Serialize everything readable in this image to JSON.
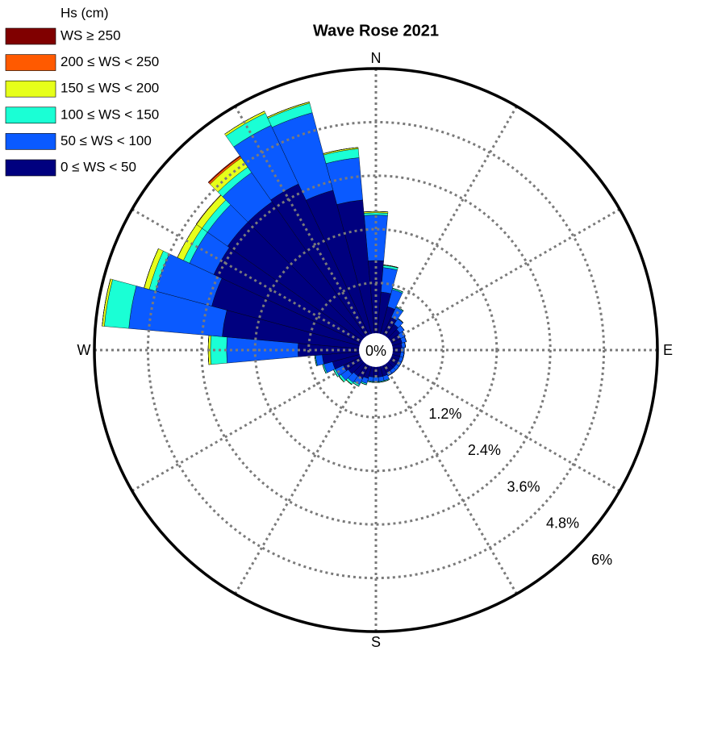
{
  "chart_data": {
    "type": "polar_stacked_bar",
    "title": "Wave Rose 2021",
    "legend_title": "Hs (cm)",
    "categories": [
      null,
      null,
      null,
      null,
      null,
      null,
      null,
      null,
      null,
      null,
      null,
      null,
      null,
      null,
      null,
      null,
      null,
      null,
      null,
      null,
      null,
      null,
      null,
      null,
      null,
      null,
      null,
      null,
      null,
      null,
      null,
      null,
      null,
      null,
      null,
      null
    ],
    "direction_labels": [
      "N",
      "E",
      "S",
      "W"
    ],
    "ylim": [
      0,
      6
    ],
    "yticks": [
      {
        "value": 0,
        "label": "0%"
      },
      {
        "value": 1.2,
        "label": "1.2%"
      },
      {
        "value": 2.4,
        "label": "2.4%"
      },
      {
        "value": 3.6,
        "label": "3.6%"
      },
      {
        "value": 4.8,
        "label": "4.8%"
      },
      {
        "value": 6,
        "label": "6%"
      }
    ],
    "grid": true,
    "legend": "upper left",
    "series": [
      {
        "name": "0 ≤ WS < 50",
        "color": "#00007f",
        "values": [
          1.7,
          1.0,
          0.7,
          0.5,
          0.4,
          0.35,
          0.3,
          0.3,
          0.28,
          0.25,
          0.25,
          0.25,
          0.25,
          0.25,
          0.25,
          0.25,
          0.3,
          0.3,
          0.3,
          0.3,
          0.35,
          0.4,
          0.4,
          0.45,
          0.5,
          0.7,
          0.9,
          1.44,
          3.15,
          3.5,
          3.7,
          3.75,
          3.75,
          3.8,
          3.4,
          3.07
        ]
      },
      {
        "name": "50 ≤ WS < 100",
        "color": "#0a5aff",
        "values": [
          1.02,
          0.55,
          0.4,
          0.25,
          0.15,
          0.12,
          0.12,
          0.1,
          0.08,
          0.08,
          0.08,
          0.08,
          0.08,
          0.08,
          0.08,
          0.08,
          0.1,
          0.1,
          0.1,
          0.1,
          0.12,
          0.15,
          0.18,
          0.2,
          0.2,
          0.2,
          0.15,
          1.6,
          2.1,
          1.3,
          0.6,
          0.55,
          0.8,
          1.45,
          1.8,
          0.95
        ]
      },
      {
        "name": "100 ≤ WS < 150",
        "color": "#1affd5",
        "values": [
          0.05,
          0.05,
          0.03,
          0.02,
          0.01,
          0,
          0,
          0,
          0,
          0,
          0,
          0,
          0,
          0,
          0,
          0,
          0.02,
          0.02,
          0.02,
          0.02,
          0.03,
          0.04,
          0.05,
          0.05,
          0.04,
          0.03,
          0.02,
          0.36,
          0.55,
          0.15,
          0.15,
          0.15,
          0.15,
          0.3,
          0.22,
          0.2
        ]
      },
      {
        "name": "150 ≤ WS < 200",
        "color": "#e6ff1a",
        "values": [
          0.03,
          0.01,
          0,
          0,
          0,
          0,
          0,
          0,
          0,
          0,
          0,
          0,
          0,
          0,
          0,
          0,
          0,
          0,
          0,
          0,
          0,
          0,
          0.01,
          0.01,
          0,
          0,
          0,
          0.05,
          0.05,
          0.12,
          0.15,
          0.15,
          0.25,
          0.05,
          0.03,
          0.03
        ]
      },
      {
        "name": "200 ≤ WS < 250",
        "color": "#ff5a00",
        "values": [
          0,
          0,
          0,
          0,
          0,
          0,
          0,
          0,
          0,
          0,
          0,
          0,
          0,
          0,
          0,
          0,
          0,
          0,
          0,
          0,
          0,
          0,
          0,
          0,
          0,
          0,
          0,
          0,
          0,
          0,
          0,
          0.01,
          0.04,
          0,
          0,
          0
        ]
      },
      {
        "name": "WS ≥ 250",
        "color": "#800000",
        "values": [
          0,
          0,
          0,
          0,
          0,
          0,
          0,
          0,
          0,
          0,
          0,
          0,
          0,
          0,
          0,
          0,
          0,
          0,
          0,
          0,
          0,
          0,
          0,
          0,
          0,
          0,
          0,
          0,
          0,
          0,
          0,
          0,
          0.02,
          0,
          0,
          0
        ]
      }
    ]
  }
}
